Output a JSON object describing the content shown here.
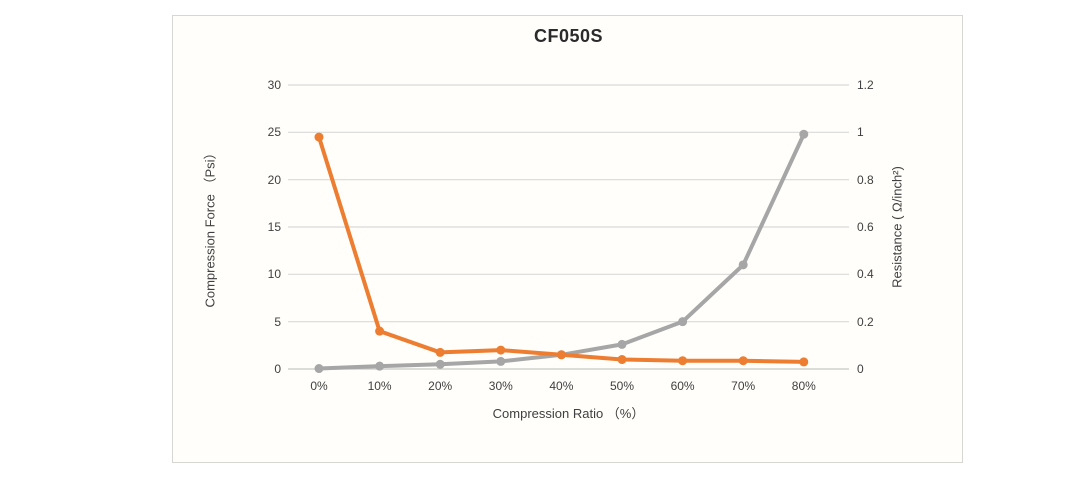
{
  "chart": {
    "title": "CF050S"
  },
  "chart_data": {
    "type": "line",
    "title": "CF050S",
    "xlabel": "Compression Ratio （%）",
    "ylabel_left": "Compression Force （Psi）",
    "ylabel_right": "Resistance ( Ω/inch²)",
    "categories": [
      "0%",
      "10%",
      "20%",
      "30%",
      "40%",
      "50%",
      "60%",
      "70%",
      "80%"
    ],
    "series": [
      {
        "name": "Compression Force",
        "axis": "left",
        "color": "#a6a6a6",
        "values": [
          0.05,
          0.3,
          0.5,
          0.8,
          1.5,
          2.6,
          5.0,
          11.0,
          24.8
        ]
      },
      {
        "name": "Resistance",
        "axis": "right",
        "color": "#ed7d31",
        "values": [
          0.98,
          0.16,
          0.07,
          0.08,
          0.06,
          0.04,
          0.035,
          0.035,
          0.03
        ]
      }
    ],
    "y_left": {
      "min": 0,
      "max": 30,
      "ticks": [
        "0",
        "5",
        "10",
        "15",
        "20",
        "25",
        "30"
      ]
    },
    "y_right": {
      "min": 0,
      "max": 1.2,
      "ticks": [
        "0",
        "0.2",
        "0.4",
        "0.6",
        "0.8",
        "1",
        "1.2"
      ]
    },
    "grid": true,
    "legend": "none",
    "colors": {
      "grid": "#d9d9d9",
      "axis_line": "#c8c8c4",
      "text": "#404040",
      "border": "#d6d6d2",
      "background": "#fffefa",
      "title": "#2b2b2b"
    }
  }
}
